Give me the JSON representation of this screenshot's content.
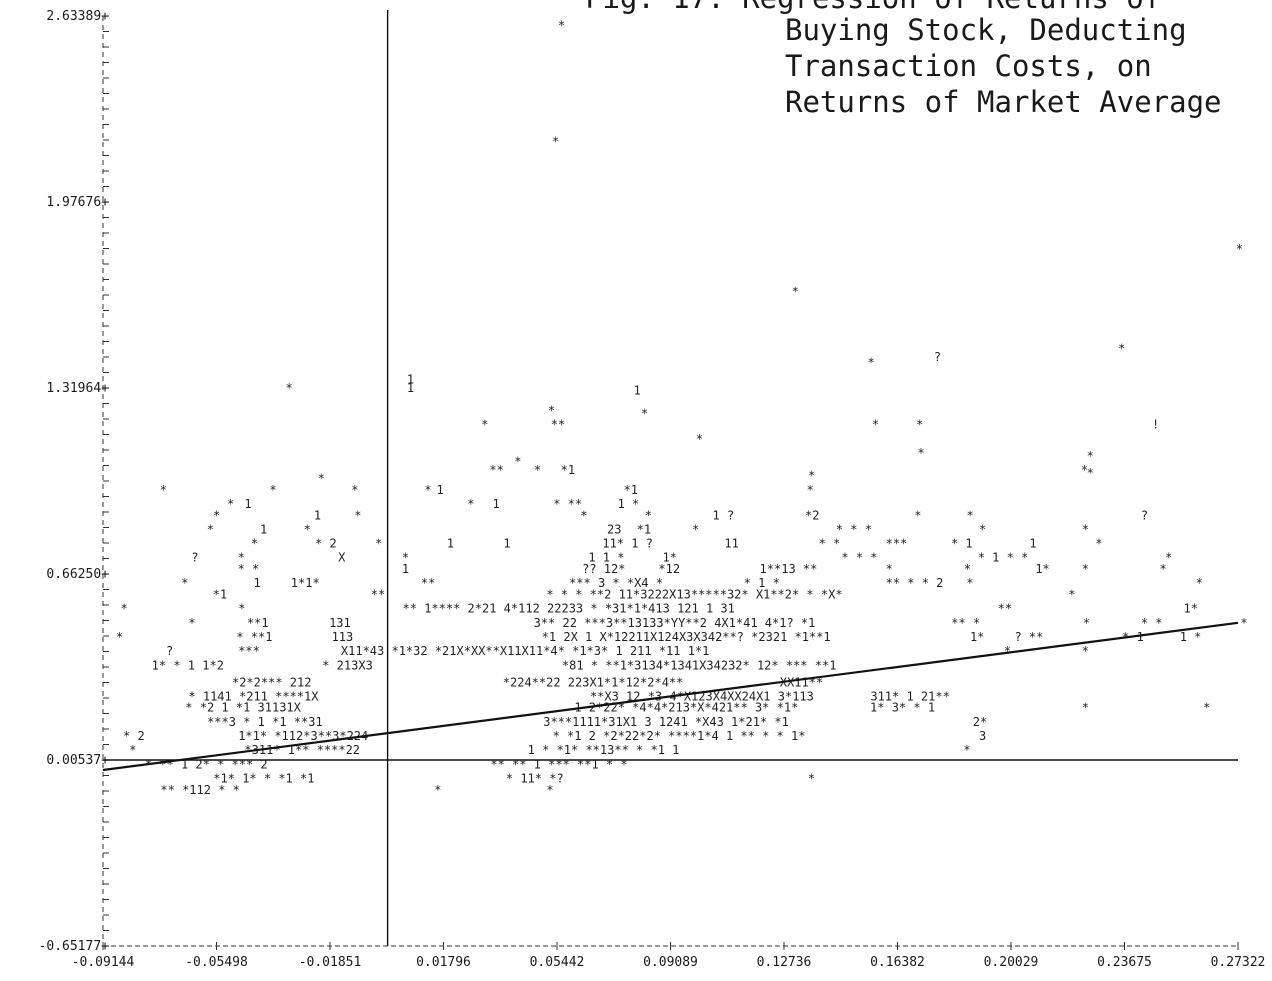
{
  "chart_data": {
    "type": "scatter",
    "title_lines": [
      "Fig. 17.  Regression of Returns of",
      "Buying Stock, Deducting",
      "Transaction Costs, on",
      "Returns of Market Average"
    ],
    "xlim": [
      -0.09144,
      0.27322
    ],
    "ylim": [
      -0.65177,
      2.63389
    ],
    "x_ticks": [
      "-0.09144",
      "-0.05498",
      "-0.01851",
      "0.01796",
      "0.05442",
      "0.09089",
      "0.12736",
      "0.16382",
      "0.20029",
      "0.23675",
      "0.27322"
    ],
    "y_ticks": [
      "2.63389+",
      "1.97676+",
      "1.31964+",
      "0.66250+",
      "0.00537+",
      "-0.65177+"
    ],
    "y_tick_values": [
      2.63389,
      1.97676,
      1.31964,
      0.6625,
      0.00537,
      -0.65177
    ],
    "zero_x": 0.0,
    "zero_y": 0.00537,
    "regression_line": {
      "x": [
        -0.09144,
        0.27322
      ],
      "y": [
        -0.03,
        0.49
      ]
    },
    "points": [
      {
        "x": 0.0547,
        "y": 2.6,
        "m": "*"
      },
      {
        "x": 0.0528,
        "y": 2.19,
        "m": "*"
      },
      {
        "x": 0.1298,
        "y": 1.66,
        "m": "*"
      },
      {
        "x": 0.2725,
        "y": 1.81,
        "m": "*"
      },
      {
        "x": 0.2347,
        "y": 1.46,
        "m": "*"
      },
      {
        "x": 0.1755,
        "y": 1.43,
        "m": "?"
      },
      {
        "x": 0.1542,
        "y": 1.41,
        "m": "*"
      },
      {
        "x": 0.0062,
        "y": 1.35,
        "m": "1"
      },
      {
        "x": 0.0062,
        "y": 1.32,
        "m": "1"
      },
      {
        "x": -0.0328,
        "y": 1.32,
        "m": "*"
      },
      {
        "x": 0.079,
        "y": 1.31,
        "m": "1"
      },
      {
        "x": 0.0515,
        "y": 1.24,
        "m": "*"
      },
      {
        "x": 0.0814,
        "y": 1.23,
        "m": "*"
      },
      {
        "x": 0.0524,
        "y": 1.19,
        "m": "**"
      },
      {
        "x": 0.0301,
        "y": 1.19,
        "m": "*"
      },
      {
        "x": 0.1556,
        "y": 1.19,
        "m": "*"
      },
      {
        "x": 0.1698,
        "y": 1.19,
        "m": "*"
      },
      {
        "x": 0.2456,
        "y": 1.19,
        "m": "!"
      },
      {
        "x": 0.099,
        "y": 1.14,
        "m": "*"
      },
      {
        "x": 0.1702,
        "y": 1.09,
        "m": "*"
      },
      {
        "x": 0.2246,
        "y": 1.08,
        "m": "*"
      },
      {
        "x": 0.0407,
        "y": 1.06,
        "m": "*"
      },
      {
        "x": 0.0327,
        "y": 1.03,
        "m": "**"
      },
      {
        "x": 0.047,
        "y": 1.03,
        "m": "*"
      },
      {
        "x": 0.0556,
        "y": 1.03,
        "m": "*1"
      },
      {
        "x": 0.2246,
        "y": 1.02,
        "m": "*"
      },
      {
        "x": 0.1351,
        "y": 1.01,
        "m": "*"
      },
      {
        "x": 0.2227,
        "y": 1.03,
        "m": "*"
      },
      {
        "x": -0.0732,
        "y": 0.96,
        "m": "*"
      },
      {
        "x": -0.038,
        "y": 0.96,
        "m": "*"
      },
      {
        "x": -0.0225,
        "y": 1.0,
        "m": "*"
      },
      {
        "x": -0.0117,
        "y": 0.96,
        "m": "*"
      },
      {
        "x": 0.0118,
        "y": 0.96,
        "m": "*"
      },
      {
        "x": 0.0157,
        "y": 0.96,
        "m": "1"
      },
      {
        "x": 0.0758,
        "y": 0.96,
        "m": "*1"
      },
      {
        "x": 0.1346,
        "y": 0.96,
        "m": "*"
      },
      {
        "x": -0.0516,
        "y": 0.91,
        "m": "*"
      },
      {
        "x": -0.046,
        "y": 0.91,
        "m": "1"
      },
      {
        "x": 0.0256,
        "y": 0.91,
        "m": "*"
      },
      {
        "x": 0.0337,
        "y": 0.91,
        "m": "1"
      },
      {
        "x": 0.0532,
        "y": 0.91,
        "m": "* **"
      },
      {
        "x": 0.0739,
        "y": 0.91,
        "m": "1 *"
      },
      {
        "x": -0.0561,
        "y": 0.87,
        "m": "*"
      },
      {
        "x": -0.0237,
        "y": 0.87,
        "m": "1"
      },
      {
        "x": -0.0107,
        "y": 0.87,
        "m": "*"
      },
      {
        "x": 0.0619,
        "y": 0.87,
        "m": "*"
      },
      {
        "x": 0.0826,
        "y": 0.87,
        "m": "*"
      },
      {
        "x": 0.1044,
        "y": 0.87,
        "m": "1 ?"
      },
      {
        "x": 0.1341,
        "y": 0.87,
        "m": "*2"
      },
      {
        "x": 0.1692,
        "y": 0.87,
        "m": "*"
      },
      {
        "x": 0.186,
        "y": 0.87,
        "m": "*"
      },
      {
        "x": 0.242,
        "y": 0.87,
        "m": "?"
      },
      {
        "x": -0.0581,
        "y": 0.82,
        "m": "*"
      },
      {
        "x": -0.041,
        "y": 0.82,
        "m": "1"
      },
      {
        "x": -0.027,
        "y": 0.82,
        "m": "*"
      },
      {
        "x": 0.0705,
        "y": 0.82,
        "m": "23"
      },
      {
        "x": 0.08,
        "y": 0.82,
        "m": "*1"
      },
      {
        "x": 0.0978,
        "y": 0.82,
        "m": "*"
      },
      {
        "x": 0.144,
        "y": 0.82,
        "m": "* * *"
      },
      {
        "x": 0.19,
        "y": 0.82,
        "m": "*"
      },
      {
        "x": 0.223,
        "y": 0.82,
        "m": "*"
      },
      {
        "x": -0.0439,
        "y": 0.77,
        "m": "*"
      },
      {
        "x": -0.0233,
        "y": 0.77,
        "m": "* 2"
      },
      {
        "x": -0.004,
        "y": 0.77,
        "m": "*"
      },
      {
        "x": 0.019,
        "y": 0.77,
        "m": "1"
      },
      {
        "x": 0.0372,
        "y": 0.77,
        "m": "1"
      },
      {
        "x": 0.069,
        "y": 0.77,
        "m": "11* 1 ?"
      },
      {
        "x": 0.1082,
        "y": 0.77,
        "m": "11"
      },
      {
        "x": 0.1385,
        "y": 0.77,
        "m": "* *"
      },
      {
        "x": 0.16,
        "y": 0.77,
        "m": "***"
      },
      {
        "x": 0.181,
        "y": 0.77,
        "m": "* 1"
      },
      {
        "x": 0.2062,
        "y": 0.77,
        "m": "1"
      },
      {
        "x": 0.2274,
        "y": 0.77,
        "m": "*"
      },
      {
        "x": -0.0631,
        "y": 0.72,
        "m": "?"
      },
      {
        "x": -0.0482,
        "y": 0.72,
        "m": "*"
      },
      {
        "x": -0.0159,
        "y": 0.72,
        "m": "X"
      },
      {
        "x": 0.0046,
        "y": 0.72,
        "m": "*"
      },
      {
        "x": 0.0645,
        "y": 0.72,
        "m": "1 1 *"
      },
      {
        "x": 0.0883,
        "y": 0.72,
        "m": "1*"
      },
      {
        "x": 0.1458,
        "y": 0.72,
        "m": "* * *"
      },
      {
        "x": 0.1896,
        "y": 0.72,
        "m": "* 1 * *"
      },
      {
        "x": 0.2498,
        "y": 0.72,
        "m": "*"
      },
      {
        "x": -0.0482,
        "y": 0.68,
        "m": "* *"
      },
      {
        "x": 0.0046,
        "y": 0.68,
        "m": "1"
      },
      {
        "x": 0.0625,
        "y": 0.68,
        "m": "?? 12*"
      },
      {
        "x": 0.087,
        "y": 0.68,
        "m": "*12"
      },
      {
        "x": 0.1195,
        "y": 0.68,
        "m": "1**13 **"
      },
      {
        "x": 0.16,
        "y": 0.68,
        "m": "*"
      },
      {
        "x": 0.1851,
        "y": 0.68,
        "m": "*"
      },
      {
        "x": 0.2081,
        "y": 0.68,
        "m": "1*"
      },
      {
        "x": 0.223,
        "y": 0.68,
        "m": "*"
      },
      {
        "x": 0.248,
        "y": 0.68,
        "m": "*"
      },
      {
        "x": -0.0663,
        "y": 0.63,
        "m": "*"
      },
      {
        "x": -0.0431,
        "y": 0.63,
        "m": "1"
      },
      {
        "x": -0.0311,
        "y": 0.63,
        "m": "1*1*"
      },
      {
        "x": 0.0107,
        "y": 0.63,
        "m": "**"
      },
      {
        "x": 0.0583,
        "y": 0.63,
        "m": "*** 3 * *X4 *"
      },
      {
        "x": 0.1144,
        "y": 0.63,
        "m": "* 1 *"
      },
      {
        "x": 0.16,
        "y": 0.63,
        "m": "** * * 2"
      },
      {
        "x": 0.1859,
        "y": 0.63,
        "m": "*"
      },
      {
        "x": 0.2596,
        "y": 0.63,
        "m": "*"
      },
      {
        "x": -0.0562,
        "y": 0.59,
        "m": "*1"
      },
      {
        "x": -0.0054,
        "y": 0.59,
        "m": "**"
      },
      {
        "x": 0.051,
        "y": 0.59,
        "m": "* * * **2 11*3222X13*****32* X1**2* * *X*"
      },
      {
        "x": 0.2187,
        "y": 0.59,
        "m": "*"
      },
      {
        "x": -0.0858,
        "y": 0.54,
        "m": "*"
      },
      {
        "x": -0.048,
        "y": 0.54,
        "m": "*"
      },
      {
        "x": 0.0048,
        "y": 0.54,
        "m": "** 1**** 2*21 4*112 22233 * *31*1*413 121 1 31"
      },
      {
        "x": 0.196,
        "y": 0.54,
        "m": "**"
      },
      {
        "x": 0.2557,
        "y": 0.54,
        "m": "1*"
      },
      {
        "x": -0.064,
        "y": 0.49,
        "m": "*"
      },
      {
        "x": -0.0452,
        "y": 0.49,
        "m": "**1"
      },
      {
        "x": -0.0188,
        "y": 0.49,
        "m": "131"
      },
      {
        "x": 0.0469,
        "y": 0.49,
        "m": "3** 22 ***3**13133*YY**2 4X1*41 4*1? *1"
      },
      {
        "x": 0.1811,
        "y": 0.49,
        "m": "** *"
      },
      {
        "x": 0.2234,
        "y": 0.49,
        "m": "*"
      },
      {
        "x": 0.242,
        "y": 0.49,
        "m": "* *"
      },
      {
        "x": 0.274,
        "y": 0.49,
        "m": "*"
      },
      {
        "x": -0.0873,
        "y": 0.44,
        "m": "*"
      },
      {
        "x": -0.0486,
        "y": 0.44,
        "m": "* **1"
      },
      {
        "x": -0.018,
        "y": 0.44,
        "m": "113"
      },
      {
        "x": 0.0495,
        "y": 0.44,
        "m": "*1 2X 1 X*12211X124X3X342**? *2321 *1**1"
      },
      {
        "x": 0.1871,
        "y": 0.44,
        "m": "1*"
      },
      {
        "x": 0.2014,
        "y": 0.44,
        "m": "? **"
      },
      {
        "x": 0.236,
        "y": 0.44,
        "m": "* 1"
      },
      {
        "x": 0.2545,
        "y": 0.44,
        "m": "1 *"
      },
      {
        "x": -0.0712,
        "y": 0.39,
        "m": "?"
      },
      {
        "x": -0.048,
        "y": 0.39,
        "m": "***"
      },
      {
        "x": -0.015,
        "y": 0.39,
        "m": "X11*43 *1*32 *21X*XX**X11X11*4* *1*3* 1 211 *11 1*1"
      },
      {
        "x": 0.198,
        "y": 0.39,
        "m": "*"
      },
      {
        "x": 0.223,
        "y": 0.39,
        "m": "*"
      },
      {
        "x": -0.0758,
        "y": 0.34,
        "m": "1* * 1 1*2"
      },
      {
        "x": -0.021,
        "y": 0.34,
        "m": "* 213X3"
      },
      {
        "x": 0.056,
        "y": 0.34,
        "m": "*81 * **1*3134*1341X34232* 12* *** **1"
      },
      {
        "x": -0.05,
        "y": 0.28,
        "m": "*2*2*** 212"
      },
      {
        "x": 0.037,
        "y": 0.28,
        "m": "*224**22 223X1*1*12*2*4**"
      },
      {
        "x": 0.126,
        "y": 0.28,
        "m": "XX11**"
      },
      {
        "x": -0.064,
        "y": 0.23,
        "m": "* 1141 *211 ****1X"
      },
      {
        "x": 0.065,
        "y": 0.23,
        "m": "**X3 12 *3 4*X123X4XX24X1 3*113"
      },
      {
        "x": 0.1551,
        "y": 0.23,
        "m": "311* 1 21**"
      },
      {
        "x": -0.065,
        "y": 0.19,
        "m": "* *2 1 *1 31131X"
      },
      {
        "x": 0.06,
        "y": 0.19,
        "m": "1 2*22* *4*4*213*X*421** 3* *1*"
      },
      {
        "x": 0.155,
        "y": 0.19,
        "m": "1* 3* * 1"
      },
      {
        "x": 0.223,
        "y": 0.19,
        "m": "*"
      },
      {
        "x": 0.262,
        "y": 0.19,
        "m": "*"
      },
      {
        "x": -0.058,
        "y": 0.14,
        "m": "***3 * 1 *1 **31"
      },
      {
        "x": 0.05,
        "y": 0.14,
        "m": "3***1111*31X1 3 1241 *X43 1*21* *1"
      },
      {
        "x": 0.188,
        "y": 0.14,
        "m": "2*"
      },
      {
        "x": -0.085,
        "y": 0.09,
        "m": "* 2"
      },
      {
        "x": -0.048,
        "y": 0.09,
        "m": "1*1* *112*3**3*224"
      },
      {
        "x": 0.053,
        "y": 0.09,
        "m": "* *1 2 *2*22*2* ****1*4 1 ** * * 1*"
      },
      {
        "x": 0.19,
        "y": 0.09,
        "m": "3"
      },
      {
        "x": -0.083,
        "y": 0.04,
        "m": "*"
      },
      {
        "x": -0.046,
        "y": 0.04,
        "m": "*311* 1** ****22"
      },
      {
        "x": 0.045,
        "y": 0.04,
        "m": "1 * *1* **13** * *1 1"
      },
      {
        "x": 0.185,
        "y": 0.04,
        "m": "*"
      },
      {
        "x": -0.078,
        "y": -0.01,
        "m": "* ** 1 2* * *** 2"
      },
      {
        "x": 0.033,
        "y": -0.01,
        "m": "** ** 1 *** **1 * *"
      },
      {
        "x": -0.056,
        "y": -0.06,
        "m": "*1* 1* * *1 *1"
      },
      {
        "x": 0.038,
        "y": -0.06,
        "m": "* 11* *?"
      },
      {
        "x": 0.135,
        "y": -0.06,
        "m": "*"
      },
      {
        "x": -0.073,
        "y": -0.1,
        "m": "** *112 * *"
      },
      {
        "x": 0.015,
        "y": -0.1,
        "m": "*"
      },
      {
        "x": 0.051,
        "y": -0.1,
        "m": "*"
      }
    ]
  }
}
